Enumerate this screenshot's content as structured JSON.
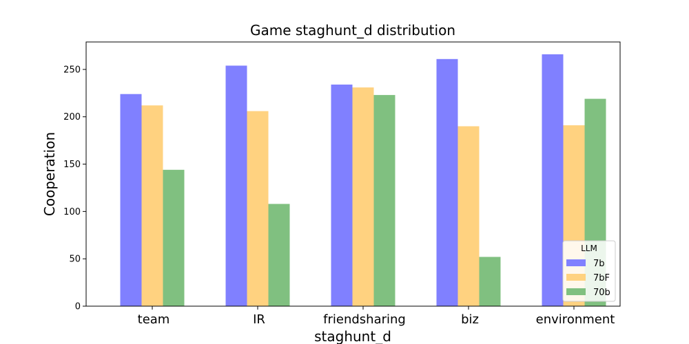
{
  "chart_data": {
    "type": "bar",
    "title": "Game staghunt_d distribution",
    "xlabel": "staghunt_d",
    "ylabel": "Cooperation",
    "categories": [
      "team",
      "IR",
      "friendsharing",
      "biz",
      "environment"
    ],
    "series": [
      {
        "name": "7b",
        "color": "#8080ff",
        "values": [
          224,
          254,
          234,
          261,
          266
        ]
      },
      {
        "name": "7bF",
        "color": "#ffd280",
        "values": [
          212,
          206,
          231,
          190,
          191
        ]
      },
      {
        "name": "70b",
        "color": "#80c080",
        "values": [
          144,
          108,
          223,
          52,
          219
        ]
      }
    ],
    "ylim": [
      0,
      279
    ],
    "yticks": [
      0,
      50,
      100,
      150,
      200,
      250
    ],
    "legend": {
      "title": "LLM",
      "position": "lower-right"
    },
    "grid": false
  }
}
